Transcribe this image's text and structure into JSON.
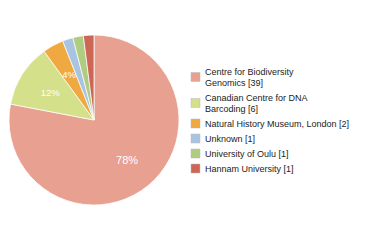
{
  "chart_data": {
    "type": "pie",
    "categories": [
      "Centre for Biodiversity\nGenomics [39]",
      "Canadian Centre for DNA\nBarcoding [6]",
      "Natural History Museum, London [2]",
      "Unknown [1]",
      "University of Oulu [1]",
      "Hannam University [1]"
    ],
    "values": [
      78,
      12,
      4,
      2,
      2,
      2
    ],
    "value_labels": [
      "78%",
      "12%",
      "4%",
      null,
      null,
      null
    ],
    "data_labels": true,
    "colors": [
      "#e8a090",
      "#d4e08a",
      "#f0a840",
      "#a8c4e0",
      "#b0cc80",
      "#cc6655"
    ],
    "legend": "right"
  }
}
